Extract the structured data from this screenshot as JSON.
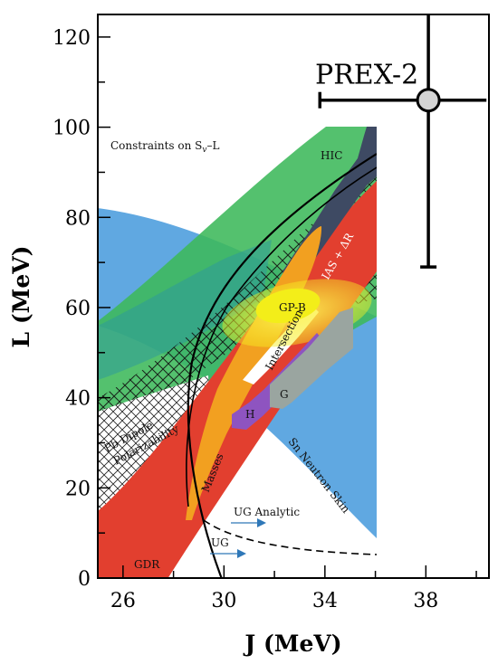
{
  "chart_data": {
    "type": "scatter",
    "title": "",
    "xlabel": "J (MeV)",
    "ylabel": "L (MeV)",
    "xlim": [
      25,
      40.5
    ],
    "ylim": [
      0,
      125
    ],
    "x_ticks": [
      "26",
      "30",
      "34",
      "38"
    ],
    "y_ticks": [
      "0",
      "20",
      "40",
      "60",
      "80",
      "100",
      "120"
    ],
    "grid": false,
    "point": {
      "name": "PREX-2",
      "x": 38.1,
      "y": 106,
      "x_err": [
        33.8,
        40.4
      ],
      "y_err": [
        69,
        125
      ]
    },
    "inset": {
      "title": "Constraints on S",
      "title_sub": "v",
      "title_tail": "–L",
      "xlim": [
        25,
        36
      ],
      "ylim": [
        0,
        100
      ],
      "regions": [
        {
          "name": "HIC",
          "color": "#3cb85a"
        },
        {
          "name": "Sn Neutron Skin",
          "color": "#4f9ede"
        },
        {
          "name": "GDR",
          "color": "#e23f2f"
        },
        {
          "name": "Masses",
          "color": "#f2a020"
        },
        {
          "name": "Intersection",
          "color": "#ffffff"
        },
        {
          "name": "GP-B",
          "color": "#f3ee19"
        },
        {
          "name": "IAS + ΔR",
          "color": "#3e4a63"
        },
        {
          "name": "H",
          "color": "#8e54c0"
        },
        {
          "name": "G",
          "color": "#9aa5a0"
        },
        {
          "name": "Pb Dipole",
          "color": "#ffffff"
        },
        {
          "name": "Polarizability",
          "color": "#ffffff"
        },
        {
          "name": "UG Analytic",
          "color": "#2f78b8"
        },
        {
          "name": "UG",
          "color": "#2f78b8"
        }
      ]
    }
  }
}
